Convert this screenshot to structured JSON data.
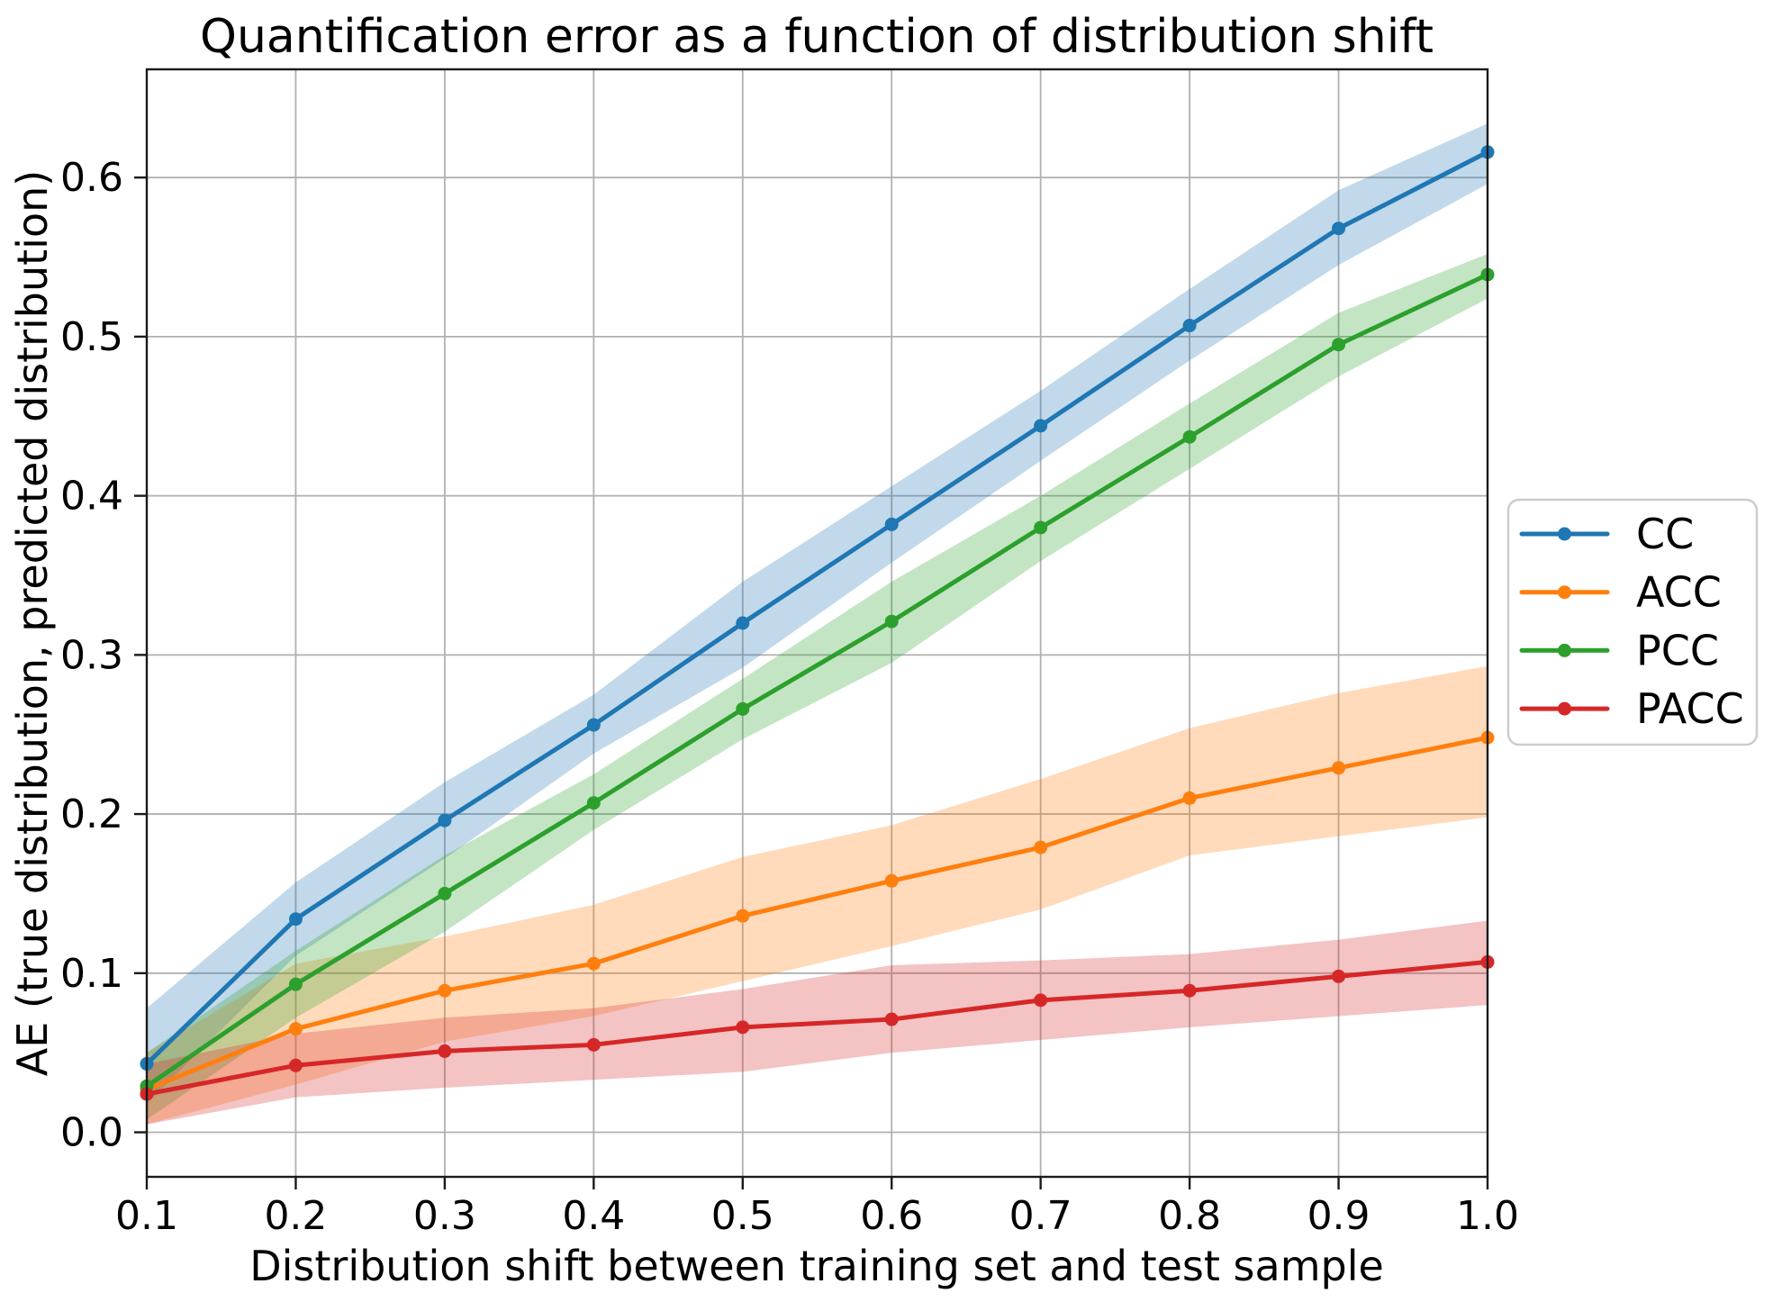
{
  "chart_data": {
    "type": "line",
    "title": "Quantification error as a function of distribution shift",
    "xlabel": "Distribution shift between training set and test sample",
    "ylabel": "AE (true distribution, predicted distribution)",
    "grid": true,
    "legend_position": "right-outside",
    "xlim": [
      0.1,
      1.0
    ],
    "ylim": [
      -0.028,
      0.668
    ],
    "x": [
      0.1,
      0.2,
      0.3,
      0.4,
      0.5,
      0.6,
      0.7,
      0.8,
      0.9,
      1.0
    ],
    "xticks": {
      "values": [
        0.1,
        0.2,
        0.3,
        0.4,
        0.5,
        0.6,
        0.7,
        0.8,
        0.9,
        1.0
      ],
      "labels": [
        "0.1",
        "0.2",
        "0.3",
        "0.4",
        "0.5",
        "0.6",
        "0.7",
        "0.8",
        "0.9",
        "1.0"
      ]
    },
    "yticks": {
      "values": [
        0.0,
        0.1,
        0.2,
        0.3,
        0.4,
        0.5,
        0.6
      ],
      "labels": [
        "0.0",
        "0.1",
        "0.2",
        "0.3",
        "0.4",
        "0.5",
        "0.6"
      ]
    },
    "grid_color": "#b0b0b0",
    "spine_color": "#1a1a1a",
    "band_alpha": 0.28,
    "series": [
      {
        "name": "CC",
        "color": "#1f77b4",
        "values": [
          0.043,
          0.134,
          0.196,
          0.256,
          0.32,
          0.382,
          0.444,
          0.507,
          0.568,
          0.616
        ],
        "band_lower": [
          0.018,
          0.111,
          0.172,
          0.238,
          0.292,
          0.358,
          0.422,
          0.485,
          0.545,
          0.596
        ],
        "band_upper": [
          0.078,
          0.157,
          0.22,
          0.275,
          0.346,
          0.406,
          0.466,
          0.53,
          0.592,
          0.634
        ]
      },
      {
        "name": "ACC",
        "color": "#ff7f0e",
        "values": [
          0.027,
          0.065,
          0.089,
          0.106,
          0.136,
          0.158,
          0.179,
          0.21,
          0.229,
          0.248
        ],
        "band_lower": [
          0.005,
          0.03,
          0.057,
          0.073,
          0.095,
          0.117,
          0.14,
          0.174,
          0.186,
          0.198
        ],
        "band_upper": [
          0.05,
          0.106,
          0.123,
          0.143,
          0.173,
          0.193,
          0.222,
          0.254,
          0.276,
          0.293
        ]
      },
      {
        "name": "PCC",
        "color": "#2ca02c",
        "values": [
          0.029,
          0.093,
          0.15,
          0.207,
          0.266,
          0.321,
          0.38,
          0.437,
          0.495,
          0.539
        ],
        "band_lower": [
          0.008,
          0.072,
          0.126,
          0.19,
          0.247,
          0.295,
          0.359,
          0.417,
          0.475,
          0.524
        ],
        "band_upper": [
          0.05,
          0.114,
          0.174,
          0.225,
          0.285,
          0.346,
          0.4,
          0.458,
          0.515,
          0.552
        ]
      },
      {
        "name": "PACC",
        "color": "#d62728",
        "values": [
          0.024,
          0.042,
          0.051,
          0.055,
          0.066,
          0.071,
          0.083,
          0.089,
          0.098,
          0.107
        ],
        "band_lower": [
          0.005,
          0.022,
          0.028,
          0.033,
          0.038,
          0.05,
          0.058,
          0.066,
          0.073,
          0.08
        ],
        "band_upper": [
          0.043,
          0.062,
          0.072,
          0.078,
          0.09,
          0.105,
          0.108,
          0.112,
          0.121,
          0.133
        ]
      }
    ],
    "legend": {
      "entries": [
        "CC",
        "ACC",
        "PCC",
        "PACC"
      ]
    }
  }
}
